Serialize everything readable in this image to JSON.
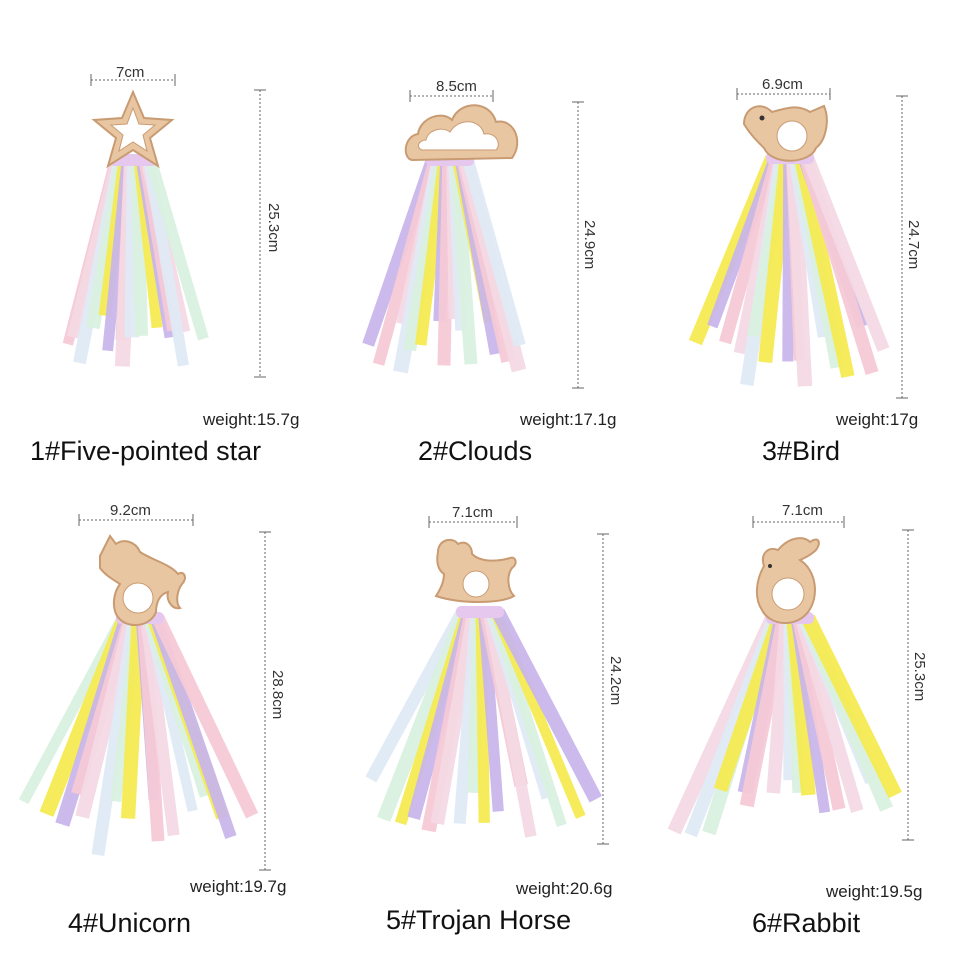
{
  "colors": {
    "wood": "#e9c6a2",
    "wood_edge": "#c99b72",
    "ribbons": [
      "#f6c9d6",
      "#c8b6ea",
      "#f5ea52",
      "#d9f0df",
      "#dfeaf6",
      "#f3d9e4"
    ]
  },
  "items": [
    {
      "name": "1#Five-pointed star",
      "width": "7cm",
      "height": "25.3cm",
      "weight": "weight:15.7g",
      "shape": "star-icon"
    },
    {
      "name": "2#Clouds",
      "width": "8.5cm",
      "height": "24.9cm",
      "weight": "weight:17.1g",
      "shape": "cloud-icon"
    },
    {
      "name": "3#Bird",
      "width": "6.9cm",
      "height": "24.7cm",
      "weight": "weight:17g",
      "shape": "bird-icon"
    },
    {
      "name": "4#Unicorn",
      "width": "9.2cm",
      "height": "28.8cm",
      "weight": "weight:19.7g",
      "shape": "unicorn-icon"
    },
    {
      "name": "5#Trojan Horse",
      "width": "7.1cm",
      "height": "24.2cm",
      "weight": "weight:20.6g",
      "shape": "rocking-horse-icon"
    },
    {
      "name": "6#Rabbit",
      "width": "7.1cm",
      "height": "25.3cm",
      "weight": "weight:19.5g",
      "shape": "rabbit-icon"
    }
  ]
}
